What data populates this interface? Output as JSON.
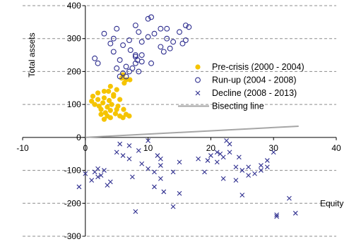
{
  "chart_data": {
    "type": "scatter",
    "title": "",
    "xlabel": "Equity",
    "ylabel": "Total assets",
    "xlim": [
      -10,
      40
    ],
    "ylim": [
      -300,
      400
    ],
    "x_ticks": [
      -10,
      0,
      10,
      20,
      30,
      40
    ],
    "x_tick_labels": [
      "-10",
      "0",
      "10",
      "20",
      "30",
      "40"
    ],
    "y_ticks": [
      -300,
      -200,
      -100,
      0,
      100,
      200,
      300,
      400
    ],
    "y_tick_labels": [
      "-300",
      "-200",
      "-100",
      "0",
      "100",
      "200",
      "300",
      "400"
    ],
    "grid": {
      "horizontal": true,
      "style": "dashed"
    },
    "legend": {
      "position": "right-middle"
    },
    "colors": {
      "pre_crisis": "#F5C400",
      "run_up": "#2E2E8F",
      "decline": "#2E2E8F",
      "bisecting": "#A6A6A6",
      "grid": "#8C8C8C",
      "axis": "#000000"
    },
    "series": [
      {
        "name": "Pre-crisis (2000 - 2004)",
        "marker": "filled-circle",
        "points": [
          [
            1,
            110
          ],
          [
            1.2,
            125
          ],
          [
            1.5,
            100
          ],
          [
            2,
            115
          ],
          [
            2,
            135
          ],
          [
            2.2,
            95
          ],
          [
            2.5,
            85
          ],
          [
            2.8,
            105
          ],
          [
            3,
            120
          ],
          [
            3,
            140
          ],
          [
            3.2,
            75
          ],
          [
            3.5,
            92
          ],
          [
            3.8,
            112
          ],
          [
            3.5,
            65
          ],
          [
            4,
            82
          ],
          [
            4.2,
            100
          ],
          [
            4.5,
            125
          ],
          [
            4,
            60
          ],
          [
            4.8,
            72
          ],
          [
            5,
            85
          ],
          [
            5.2,
            95
          ],
          [
            5.5,
            65
          ],
          [
            6,
            60
          ],
          [
            6.5,
            70
          ],
          [
            7,
            65
          ],
          [
            2.5,
            70
          ],
          [
            3,
            55
          ],
          [
            5,
            145
          ],
          [
            4.5,
            130
          ],
          [
            4,
            155
          ],
          [
            3.7,
            140
          ],
          [
            6,
            190
          ],
          [
            6.5,
            175
          ],
          [
            5.8,
            180
          ],
          [
            7.1,
            175
          ],
          [
            6.2,
            165
          ],
          [
            5.5,
            115
          ],
          [
            6.1,
            85
          ]
        ]
      },
      {
        "name": "Run-up (2004 - 2008)",
        "marker": "hollow-circle",
        "points": [
          [
            1.5,
            240
          ],
          [
            2,
            225
          ],
          [
            3,
            315
          ],
          [
            4,
            285
          ],
          [
            5,
            330
          ],
          [
            4.5,
            300
          ],
          [
            4.5,
            260
          ],
          [
            5.5,
            235
          ],
          [
            6,
            280
          ],
          [
            7,
            295
          ],
          [
            8,
            250
          ],
          [
            8,
            340
          ],
          [
            8.5,
            320
          ],
          [
            9,
            290
          ],
          [
            9,
            250
          ],
          [
            10,
            360
          ],
          [
            10.5,
            365
          ],
          [
            10,
            305
          ],
          [
            11,
            315
          ],
          [
            12,
            330
          ],
          [
            12,
            275
          ],
          [
            13,
            330
          ],
          [
            13,
            300
          ],
          [
            13.5,
            270
          ],
          [
            14,
            290
          ],
          [
            15,
            320
          ],
          [
            16,
            340
          ],
          [
            16.5,
            335
          ],
          [
            16,
            295
          ],
          [
            15.5,
            285
          ],
          [
            5,
            210
          ],
          [
            6,
            195
          ],
          [
            6.5,
            185
          ],
          [
            7,
            200
          ],
          [
            8,
            225
          ],
          [
            9,
            230
          ],
          [
            7.5,
            210
          ],
          [
            5.5,
            185
          ],
          [
            8,
            245
          ],
          [
            8.3,
            235
          ],
          [
            6.5,
            215
          ],
          [
            7.2,
            265
          ],
          [
            8.5,
            200
          ],
          [
            10.5,
            225
          ],
          [
            12.5,
            260
          ]
        ]
      },
      {
        "name": "Decline (2008 - 2013)",
        "marker": "x",
        "points": [
          [
            -1,
            -150
          ],
          [
            0,
            -110
          ],
          [
            1,
            -130
          ],
          [
            1.5,
            -105
          ],
          [
            2,
            -95
          ],
          [
            2,
            -120
          ],
          [
            2.5,
            -115
          ],
          [
            3,
            -100
          ],
          [
            3.5,
            -145
          ],
          [
            4,
            -135
          ],
          [
            5,
            -45
          ],
          [
            5.5,
            -20
          ],
          [
            6,
            -55
          ],
          [
            7,
            -65
          ],
          [
            7,
            -25
          ],
          [
            7.5,
            -120
          ],
          [
            8,
            -225
          ],
          [
            8.5,
            -40
          ],
          [
            9,
            -80
          ],
          [
            10,
            -10
          ],
          [
            10,
            -95
          ],
          [
            11,
            -105
          ],
          [
            11,
            -150
          ],
          [
            11.5,
            -55
          ],
          [
            12,
            -125
          ],
          [
            12,
            -85
          ],
          [
            12,
            -65
          ],
          [
            12.5,
            -165
          ],
          [
            14,
            -105
          ],
          [
            14,
            -210
          ],
          [
            15,
            -75
          ],
          [
            15,
            -170
          ],
          [
            18,
            -65
          ],
          [
            19,
            -105
          ],
          [
            19.5,
            -70
          ],
          [
            20,
            -55
          ],
          [
            21,
            -45
          ],
          [
            21,
            -75
          ],
          [
            21.5,
            -50
          ],
          [
            22,
            -60
          ],
          [
            22.5,
            -10
          ],
          [
            22,
            -125
          ],
          [
            23,
            -20
          ],
          [
            23,
            -45
          ],
          [
            24,
            -90
          ],
          [
            24,
            -130
          ],
          [
            24.5,
            -60
          ],
          [
            25,
            -100
          ],
          [
            25,
            -175
          ],
          [
            26,
            -90
          ],
          [
            26,
            -115
          ],
          [
            27,
            -110
          ],
          [
            28,
            -85
          ],
          [
            28,
            -100
          ],
          [
            29,
            -70
          ],
          [
            30,
            -45
          ],
          [
            30.5,
            -235
          ],
          [
            30.5,
            -240
          ],
          [
            32.5,
            -185
          ],
          [
            33.5,
            -230
          ],
          [
            29,
            -90
          ]
        ]
      },
      {
        "name": "Bisecting line",
        "marker": "line",
        "points": [
          [
            0,
            0
          ],
          [
            34,
            34
          ]
        ]
      }
    ]
  }
}
